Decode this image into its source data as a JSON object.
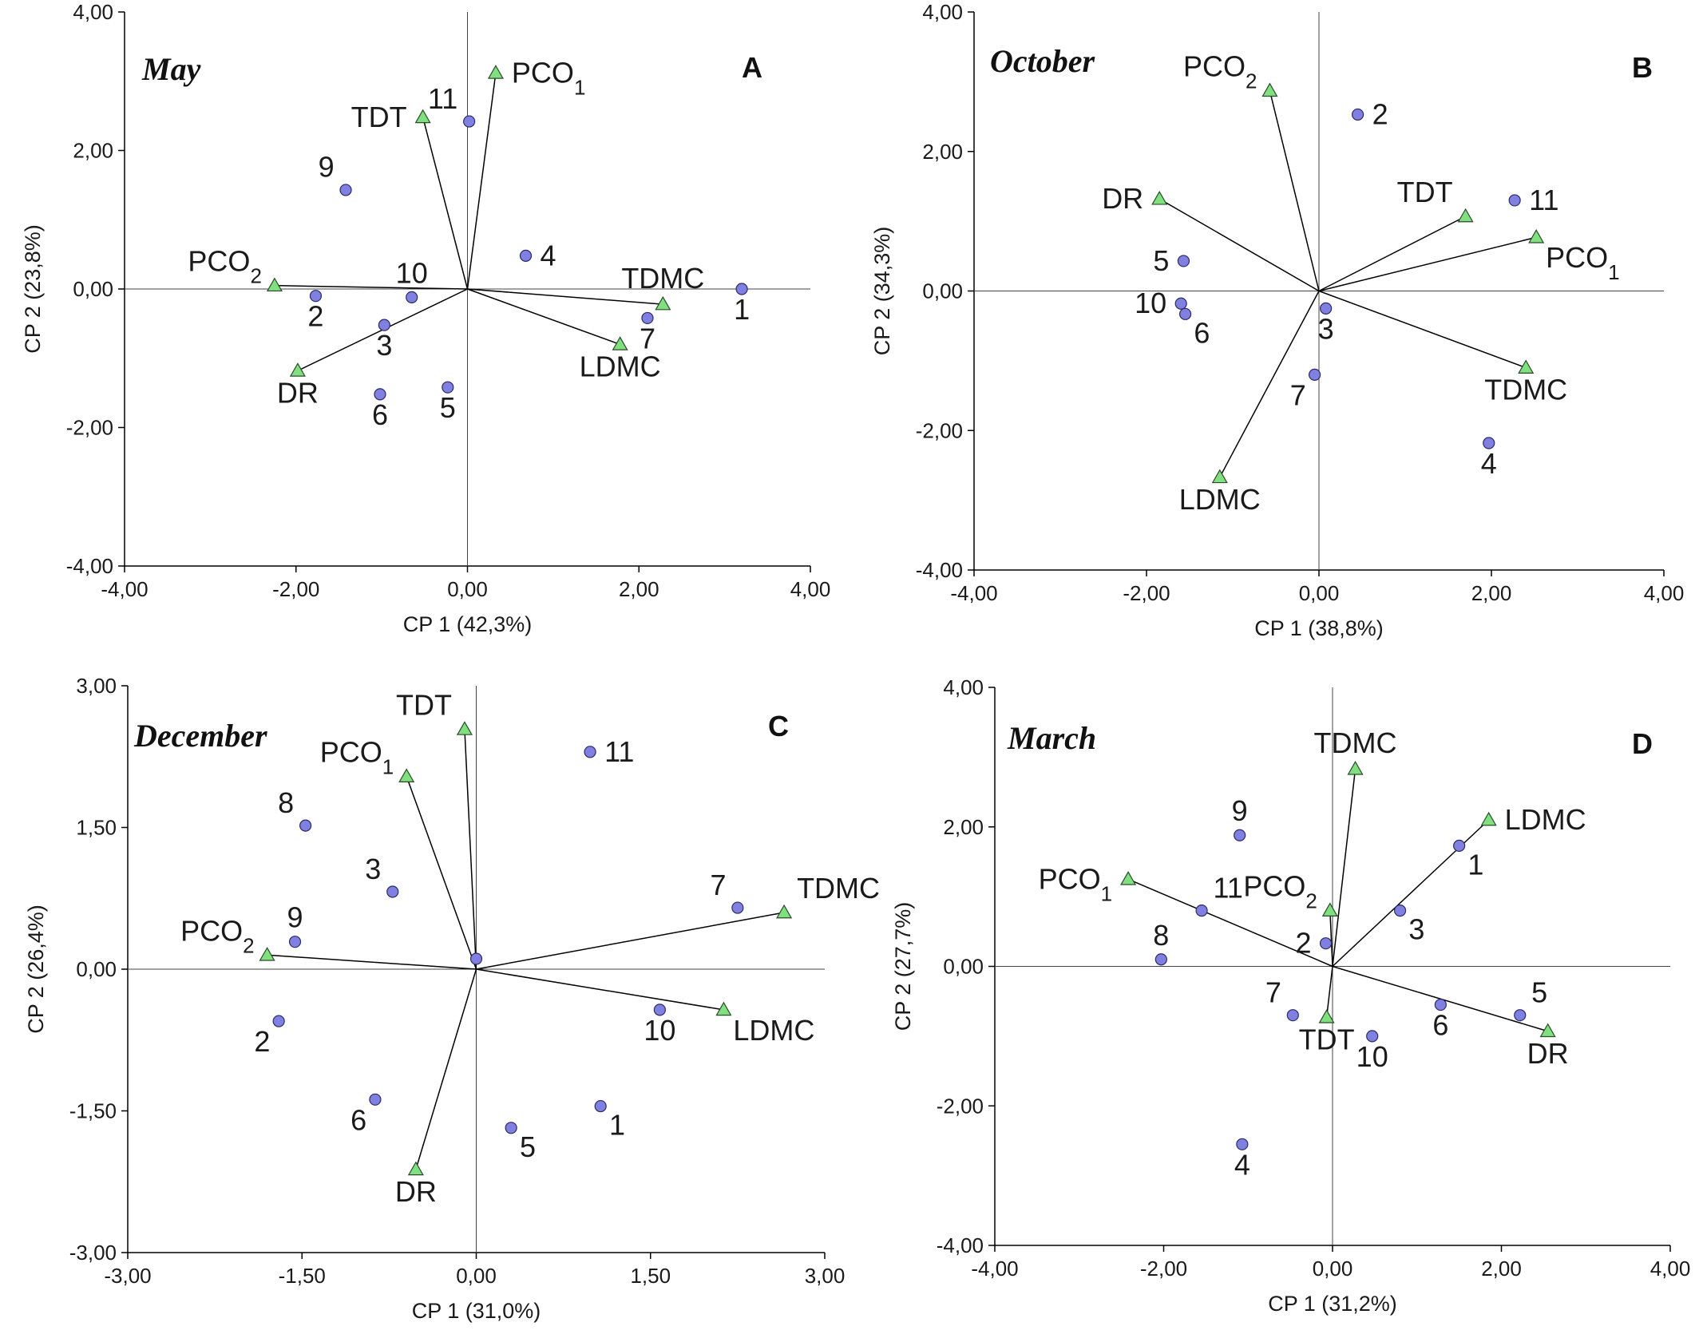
{
  "colors": {
    "sample_marker": "#8080e0",
    "variable_marker": "#80e080",
    "axis": "#000000",
    "vector": "#000000"
  },
  "chart_data": [
    {
      "type": "scatter",
      "panel": "A",
      "title": "May",
      "xlabel": "CP 1 (42,3%)",
      "ylabel": "CP 2 (23,8%)",
      "xlim": [
        -4,
        4
      ],
      "ylim": [
        -4,
        4
      ],
      "xticks": [
        "-4,00",
        "-2,00",
        "0,00",
        "2,00",
        "4,00"
      ],
      "yticks": [
        "-4,00",
        "-2,00",
        "0,00",
        "2,00",
        "4,00"
      ],
      "xticks_v": [
        -4,
        -2,
        0,
        2,
        4
      ],
      "yticks_v": [
        -4,
        -2,
        0,
        2,
        4
      ],
      "samples": [
        {
          "label": "1",
          "x": 3.2,
          "y": 0.0,
          "lp": "below"
        },
        {
          "label": "2",
          "x": -1.77,
          "y": -0.1,
          "lp": "below"
        },
        {
          "label": "3",
          "x": -0.97,
          "y": -0.52,
          "lp": "below"
        },
        {
          "label": "4",
          "x": 0.68,
          "y": 0.48,
          "lp": "right"
        },
        {
          "label": "5",
          "x": -0.23,
          "y": -1.42,
          "lp": "below"
        },
        {
          "label": "6",
          "x": -1.02,
          "y": -1.52,
          "lp": "below"
        },
        {
          "label": "7",
          "x": 2.1,
          "y": -0.42,
          "lp": "below"
        },
        {
          "label": "9",
          "x": -1.42,
          "y": 1.43,
          "lp": "upleft"
        },
        {
          "label": "10",
          "x": -0.65,
          "y": -0.12,
          "lp": "above"
        },
        {
          "label": "11",
          "x": 0.02,
          "y": 2.42,
          "lp": "upleft"
        }
      ],
      "variables": [
        {
          "label": "PCO",
          "sub": "1",
          "x": 0.33,
          "y": 3.12,
          "lp": "right"
        },
        {
          "label": "PCO",
          "sub": "2",
          "x": -2.25,
          "y": 0.05,
          "lp": "upleft"
        },
        {
          "label": "TDT",
          "x": -0.52,
          "y": 2.48,
          "lp": "left"
        },
        {
          "label": "DR",
          "x": -1.98,
          "y": -1.18,
          "lp": "below"
        },
        {
          "label": "TDMC",
          "x": 2.28,
          "y": -0.22,
          "lp": "above"
        },
        {
          "label": "LDMC",
          "x": 1.78,
          "y": -0.8,
          "lp": "below"
        }
      ]
    },
    {
      "type": "scatter",
      "panel": "B",
      "title": "October",
      "xlabel": "CP 1 (38,8%)",
      "ylabel": "CP 2 (34,3%)",
      "xlim": [
        -4,
        4
      ],
      "ylim": [
        -4,
        4
      ],
      "xticks": [
        "-4,00",
        "-2,00",
        "0,00",
        "2,00",
        "4,00"
      ],
      "yticks": [
        "-4,00",
        "-2,00",
        "0,00",
        "2,00",
        "4,00"
      ],
      "xticks_v": [
        -4,
        -2,
        0,
        2,
        4
      ],
      "yticks_v": [
        -4,
        -2,
        0,
        2,
        4
      ],
      "samples": [
        {
          "label": "2",
          "x": 0.45,
          "y": 2.53,
          "lp": "right"
        },
        {
          "label": "3",
          "x": 0.08,
          "y": -0.25,
          "lp": "below"
        },
        {
          "label": "4",
          "x": 1.97,
          "y": -2.18,
          "lp": "below"
        },
        {
          "label": "5",
          "x": -1.57,
          "y": 0.43,
          "lp": "left"
        },
        {
          "label": "6",
          "x": -1.55,
          "y": -0.33,
          "lp": "belowright"
        },
        {
          "label": "7",
          "x": -0.05,
          "y": -1.2,
          "lp": "belowleft"
        },
        {
          "label": "10",
          "x": -1.6,
          "y": -0.18,
          "lp": "left"
        },
        {
          "label": "11",
          "x": 2.27,
          "y": 1.3,
          "lp": "right"
        }
      ],
      "variables": [
        {
          "label": "PCO",
          "sub": "1",
          "x": 2.52,
          "y": 0.77,
          "lp": "belowright"
        },
        {
          "label": "PCO",
          "sub": "2",
          "x": -0.57,
          "y": 2.87,
          "lp": "upleft"
        },
        {
          "label": "DR",
          "x": -1.85,
          "y": 1.32,
          "lp": "left"
        },
        {
          "label": "TDT",
          "x": 1.7,
          "y": 1.07,
          "lp": "upleft"
        },
        {
          "label": "TDMC",
          "x": 2.4,
          "y": -1.1,
          "lp": "below"
        },
        {
          "label": "LDMC",
          "x": -1.15,
          "y": -2.67,
          "lp": "below"
        }
      ]
    },
    {
      "type": "scatter",
      "panel": "C",
      "title": "December",
      "xlabel": "CP 1 (31,0%)",
      "ylabel": "CP 2 (26,4%)",
      "xlim": [
        -3,
        3
      ],
      "ylim": [
        -3,
        3
      ],
      "xticks": [
        "-3,00",
        "-1,50",
        "0,00",
        "1,50",
        "3,00"
      ],
      "yticks": [
        "-3,00",
        "-1,50",
        "0,00",
        "1,50",
        "3,00"
      ],
      "xticks_v": [
        -3,
        -1.5,
        0,
        1.5,
        3
      ],
      "yticks_v": [
        -3,
        -1.5,
        0,
        1.5,
        3
      ],
      "samples": [
        {
          "label": "1",
          "x": 1.07,
          "y": -1.45,
          "lp": "belowright"
        },
        {
          "label": "2",
          "x": -1.7,
          "y": -0.55,
          "lp": "belowleft"
        },
        {
          "label": "3",
          "x": -0.72,
          "y": 0.82,
          "lp": "upleft"
        },
        {
          "label": "5",
          "x": 0.3,
          "y": -1.68,
          "lp": "belowright"
        },
        {
          "label": "6",
          "x": -0.87,
          "y": -1.38,
          "lp": "belowleft"
        },
        {
          "label": "7",
          "x": 2.25,
          "y": 0.65,
          "lp": "upleft"
        },
        {
          "label": "8",
          "x": -1.47,
          "y": 1.52,
          "lp": "upleft"
        },
        {
          "label": "9",
          "x": -1.56,
          "y": 0.29,
          "lp": "above"
        },
        {
          "label": "10",
          "x": 1.58,
          "y": -0.43,
          "lp": "below"
        },
        {
          "label": "11",
          "x": 0.98,
          "y": 2.3,
          "lp": "right"
        },
        {
          "label": "",
          "x": 0.0,
          "y": 0.11,
          "lp": "none"
        }
      ],
      "variables": [
        {
          "label": "PCO",
          "sub": "1",
          "x": -0.6,
          "y": 2.04,
          "lp": "upleft"
        },
        {
          "label": "PCO",
          "sub": "2",
          "x": -1.8,
          "y": 0.15,
          "lp": "upleft"
        },
        {
          "label": "TDT",
          "x": -0.1,
          "y": 2.54,
          "lp": "upleft"
        },
        {
          "label": "DR",
          "x": -0.52,
          "y": -2.12,
          "lp": "below"
        },
        {
          "label": "TDMC",
          "x": 2.65,
          "y": 0.6,
          "lp": "upright"
        },
        {
          "label": "LDMC",
          "x": 2.13,
          "y": -0.43,
          "lp": "belowright"
        }
      ]
    },
    {
      "type": "scatter",
      "panel": "D",
      "title": "March",
      "xlabel": "CP 1 (31,2%)",
      "ylabel": "CP 2 (27,7%)",
      "xlim": [
        -4,
        4
      ],
      "ylim": [
        -4,
        4
      ],
      "xticks": [
        "-4,00",
        "-2,00",
        "0,00",
        "2,00",
        "4,00"
      ],
      "yticks": [
        "-4,00",
        "-2,00",
        "0,00",
        "2,00",
        "4,00"
      ],
      "xticks_v": [
        -4,
        -2,
        0,
        2,
        4
      ],
      "yticks_v": [
        -4,
        -2,
        0,
        2,
        4
      ],
      "samples": [
        {
          "label": "1",
          "x": 1.5,
          "y": 1.73,
          "lp": "belowright"
        },
        {
          "label": "2",
          "x": -0.08,
          "y": 0.33,
          "lp": "left"
        },
        {
          "label": "3",
          "x": 0.8,
          "y": 0.8,
          "lp": "belowright"
        },
        {
          "label": "4",
          "x": -1.07,
          "y": -2.55,
          "lp": "below"
        },
        {
          "label": "5",
          "x": 2.22,
          "y": -0.7,
          "lp": "upright"
        },
        {
          "label": "6",
          "x": 1.28,
          "y": -0.55,
          "lp": "below"
        },
        {
          "label": "7",
          "x": -0.47,
          "y": -0.7,
          "lp": "upleft"
        },
        {
          "label": "8",
          "x": -2.03,
          "y": 0.1,
          "lp": "above"
        },
        {
          "label": "9",
          "x": -1.1,
          "y": 1.88,
          "lp": "above"
        },
        {
          "label": "10",
          "x": 0.47,
          "y": -1.0,
          "lp": "below"
        },
        {
          "label": "11",
          "x": -1.55,
          "y": 0.8,
          "lp": "upright"
        }
      ],
      "variables": [
        {
          "label": "PCO",
          "sub": "1",
          "x": -2.42,
          "y": 1.25,
          "lp": "left"
        },
        {
          "label": "PCO",
          "sub": "2",
          "x": -0.03,
          "y": 0.8,
          "lp": "upleft"
        },
        {
          "label": "TDT",
          "x": -0.07,
          "y": -0.73,
          "lp": "below"
        },
        {
          "label": "DR",
          "x": 2.55,
          "y": -0.93,
          "lp": "below"
        },
        {
          "label": "TDMC",
          "x": 0.27,
          "y": 2.83,
          "lp": "above"
        },
        {
          "label": "LDMC",
          "x": 1.85,
          "y": 2.1,
          "lp": "right"
        }
      ]
    }
  ]
}
